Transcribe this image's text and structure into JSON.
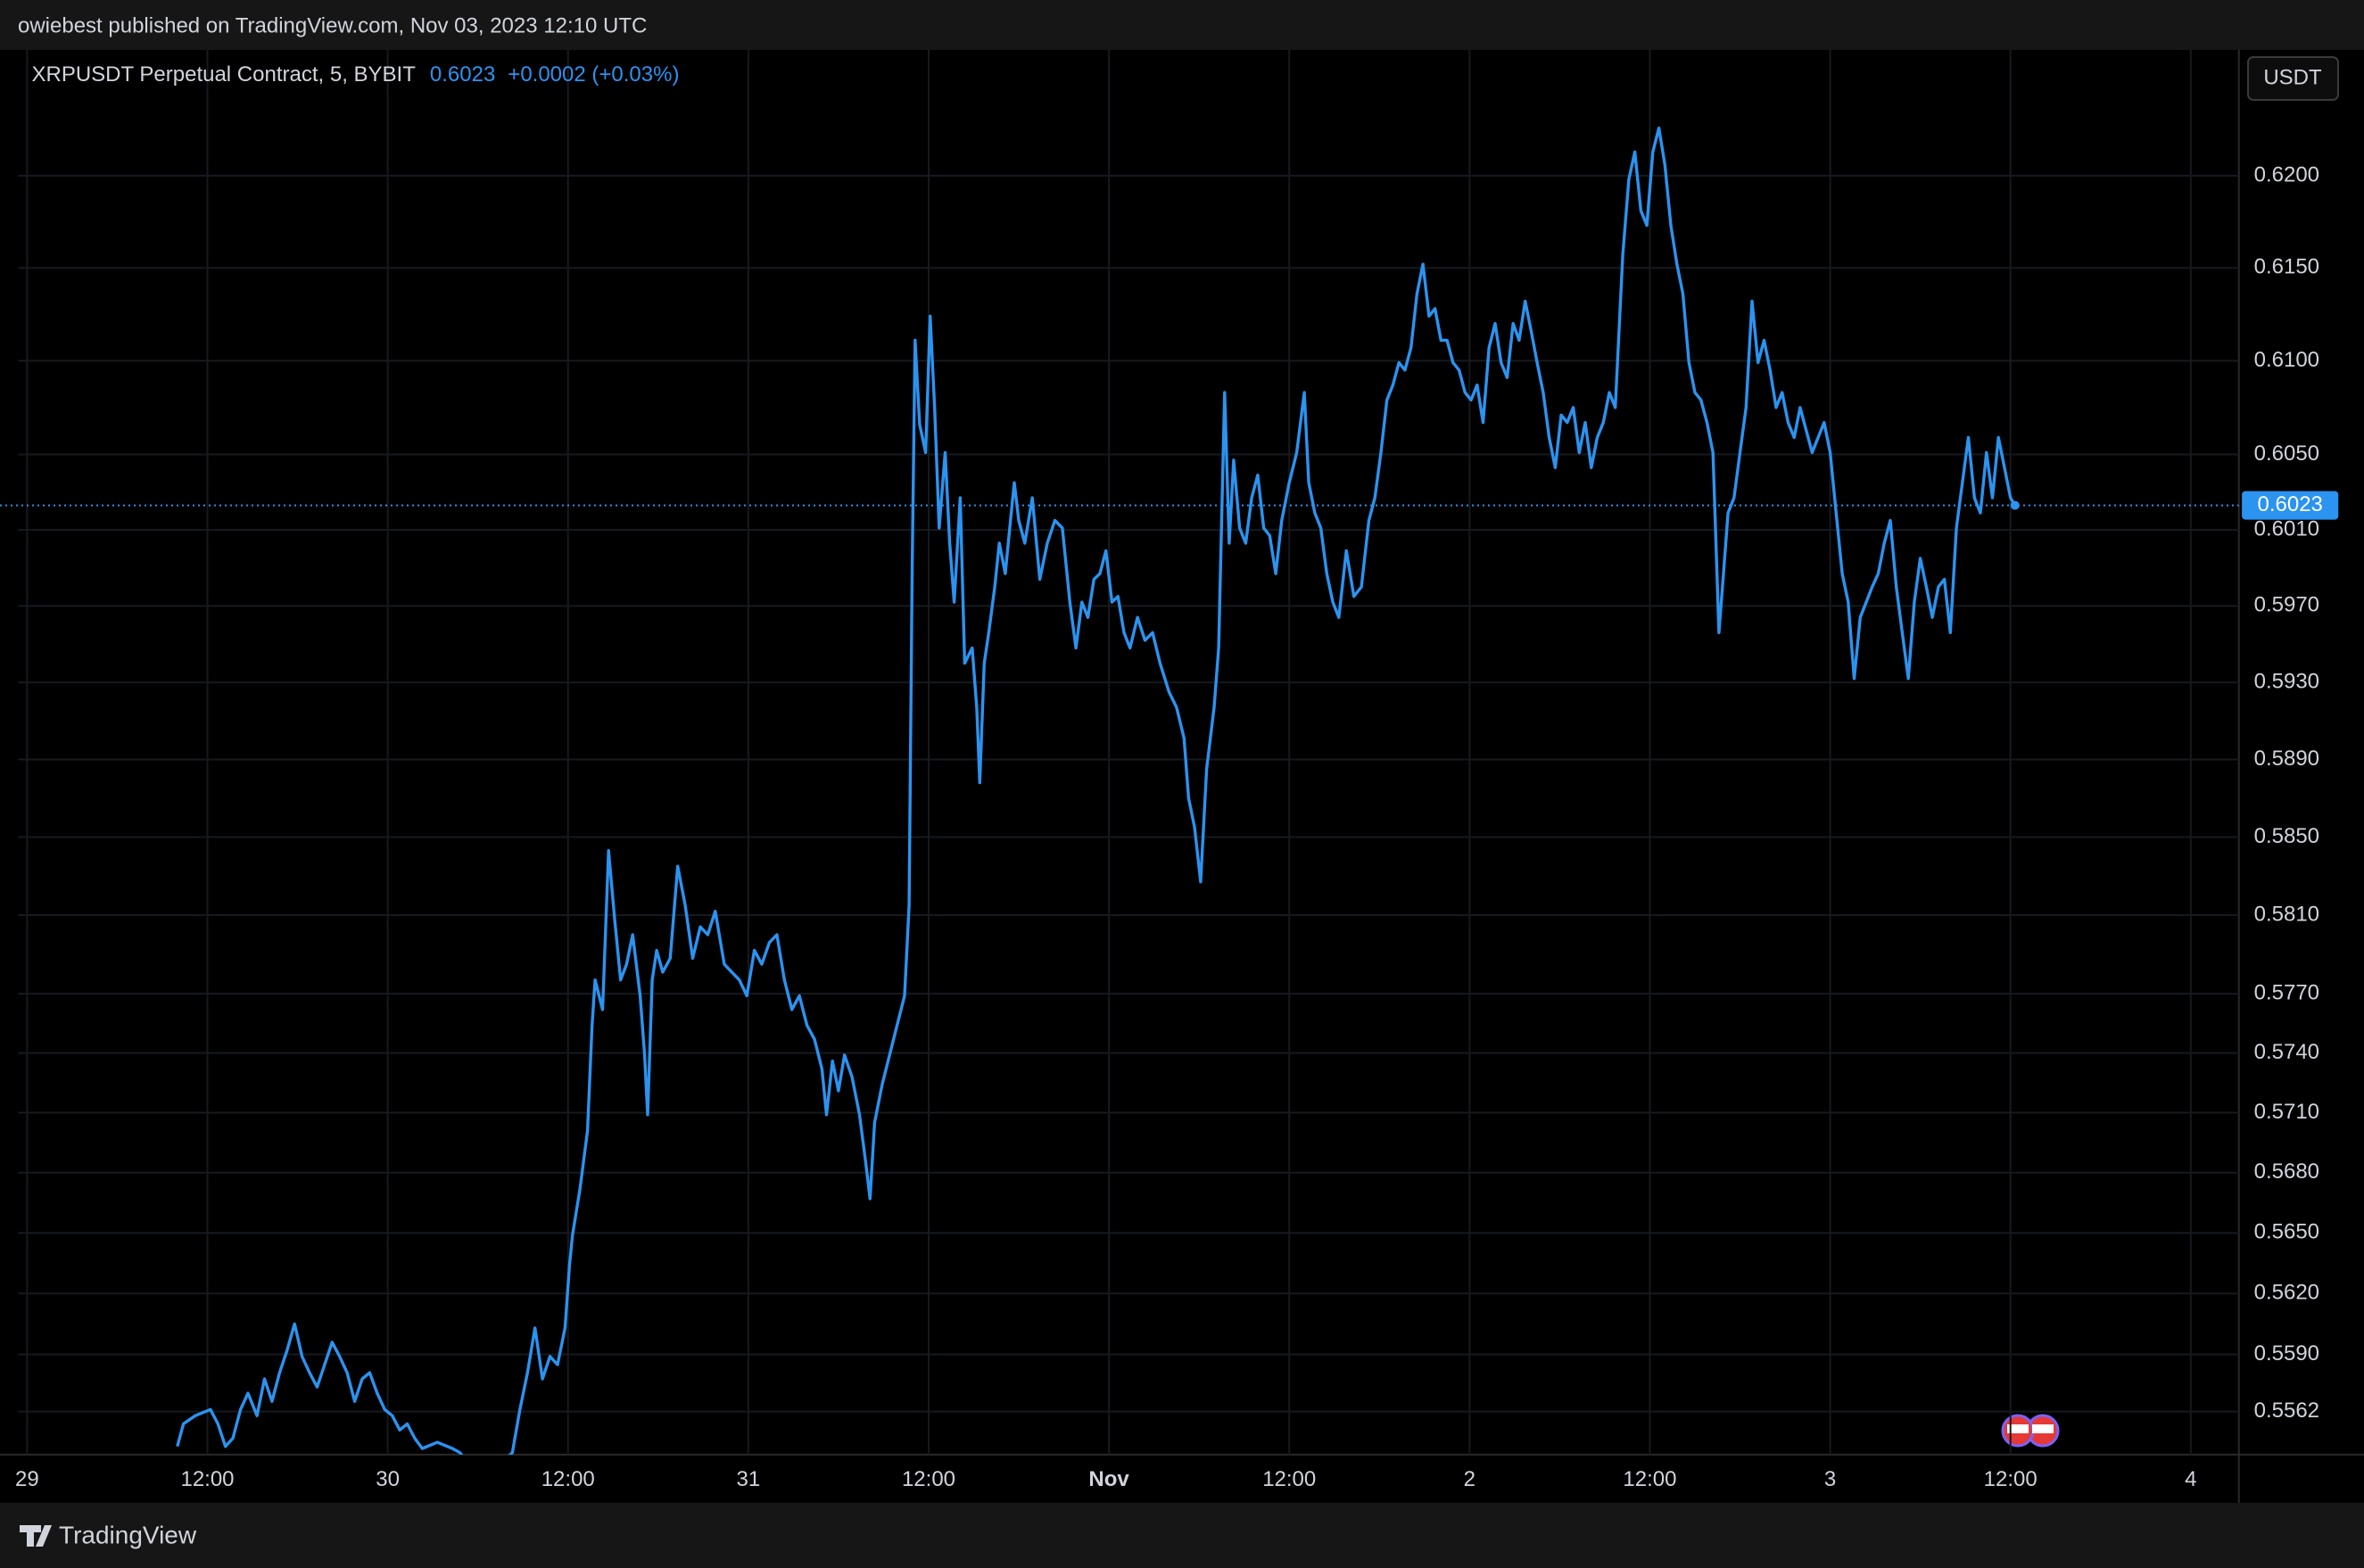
{
  "chart_data": {
    "type": "line",
    "published": "owiebest published on TradingView.com, Nov 03, 2023 12:10 UTC",
    "price": "0.6023",
    "change": "+0.0002 (+0.03%)",
    "currency": "USDT",
    "brand": "TradingView",
    "log_scale": true,
    "grid": true,
    "xlim": [
      -0.6,
      147.2
    ],
    "ylim": [
      0.5541,
      0.6269
    ],
    "xticks": [
      {
        "value": 0,
        "label": "29"
      },
      {
        "value": 12,
        "label": "12:00"
      },
      {
        "value": 24,
        "label": "30"
      },
      {
        "value": 36,
        "label": "12:00"
      },
      {
        "value": 48,
        "label": "31"
      },
      {
        "value": 60,
        "label": "12:00"
      },
      {
        "value": 72,
        "label": "Nov"
      },
      {
        "value": 84,
        "label": "12:00"
      },
      {
        "value": 96,
        "label": "2"
      },
      {
        "value": 108,
        "label": "12:00"
      },
      {
        "value": 120,
        "label": "3"
      },
      {
        "value": 132,
        "label": "12:00"
      },
      {
        "value": 144,
        "label": "4"
      }
    ],
    "yticks": [
      {
        "value": 0.62,
        "label": "0.6200"
      },
      {
        "value": 0.615,
        "label": "0.6150"
      },
      {
        "value": 0.61,
        "label": "0.6100"
      },
      {
        "value": 0.605,
        "label": "0.6050"
      },
      {
        "value": 0.601,
        "label": "0.6010"
      },
      {
        "value": 0.597,
        "label": "0.5970"
      },
      {
        "value": 0.593,
        "label": "0.5930"
      },
      {
        "value": 0.589,
        "label": "0.5890"
      },
      {
        "value": 0.585,
        "label": "0.5850"
      },
      {
        "value": 0.581,
        "label": "0.5810"
      },
      {
        "value": 0.577,
        "label": "0.5770"
      },
      {
        "value": 0.574,
        "label": "0.5740"
      },
      {
        "value": 0.571,
        "label": "0.5710"
      },
      {
        "value": 0.568,
        "label": "0.5680"
      },
      {
        "value": 0.565,
        "label": "0.5650"
      },
      {
        "value": 0.562,
        "label": "0.5620"
      },
      {
        "value": 0.559,
        "label": "0.5590"
      },
      {
        "value": 0.5562,
        "label": "0.5562"
      }
    ],
    "x": [
      10.0,
      10.4,
      11.2,
      12.2,
      12.7,
      13.2,
      13.7,
      14.2,
      14.7,
      15.3,
      15.8,
      16.3,
      16.8,
      17.3,
      17.8,
      18.3,
      18.8,
      19.3,
      19.8,
      20.3,
      20.8,
      21.3,
      21.8,
      22.3,
      22.8,
      23.3,
      23.8,
      24.3,
      24.8,
      25.3,
      25.8,
      26.3,
      27.3,
      28.3,
      28.8,
      30.3,
      32.3,
      32.8,
      33.3,
      33.8,
      34.3,
      34.8,
      35.3,
      35.8,
      36.1,
      36.3,
      36.8,
      37.3,
      37.6,
      37.8,
      38.3,
      38.7,
      39.1,
      39.5,
      39.9,
      40.3,
      40.8,
      41.1,
      41.3,
      41.6,
      41.9,
      42.3,
      42.8,
      43.3,
      43.8,
      44.3,
      44.8,
      45.3,
      45.8,
      46.4,
      46.9,
      47.4,
      47.9,
      48.4,
      48.9,
      49.4,
      49.9,
      50.4,
      50.9,
      51.4,
      51.9,
      52.4,
      52.9,
      53.2,
      53.6,
      54.0,
      54.4,
      54.9,
      55.4,
      55.8,
      56.1,
      56.4,
      56.9,
      57.4,
      57.9,
      58.4,
      58.7,
      58.9,
      59.1,
      59.4,
      59.8,
      60.1,
      60.4,
      60.7,
      61.1,
      61.4,
      61.7,
      62.1,
      62.4,
      62.9,
      63.2,
      63.4,
      63.7,
      64.0,
      64.4,
      64.7,
      65.1,
      65.4,
      65.7,
      66.0,
      66.4,
      66.9,
      67.4,
      67.9,
      68.4,
      68.9,
      69.4,
      69.8,
      70.2,
      70.6,
      71.0,
      71.4,
      71.8,
      72.2,
      72.6,
      73.0,
      73.4,
      73.9,
      74.4,
      74.9,
      75.4,
      76.0,
      76.5,
      77.0,
      77.3,
      77.7,
      78.1,
      78.5,
      79.0,
      79.3,
      79.7,
      80.0,
      80.3,
      80.7,
      81.1,
      81.5,
      81.9,
      82.3,
      82.7,
      83.1,
      83.5,
      84.0,
      84.5,
      85.0,
      85.3,
      85.7,
      86.1,
      86.5,
      86.9,
      87.3,
      87.8,
      88.3,
      88.8,
      89.3,
      89.7,
      90.1,
      90.5,
      90.9,
      91.3,
      91.7,
      92.1,
      92.5,
      92.9,
      93.3,
      93.7,
      94.1,
      94.5,
      94.9,
      95.3,
      95.7,
      96.1,
      96.5,
      96.9,
      97.3,
      97.7,
      98.1,
      98.5,
      98.9,
      99.3,
      99.7,
      100.1,
      100.5,
      100.9,
      101.3,
      101.7,
      102.1,
      102.5,
      102.9,
      103.3,
      103.7,
      104.1,
      104.5,
      104.9,
      105.3,
      105.7,
      106.2,
      106.6,
      107.0,
      107.4,
      107.8,
      108.2,
      108.6,
      109.0,
      109.4,
      109.8,
      110.2,
      110.6,
      111.0,
      111.4,
      111.8,
      112.2,
      112.6,
      112.9,
      113.2,
      113.6,
      114.0,
      114.4,
      114.8,
      115.2,
      115.6,
      116.0,
      116.4,
      116.8,
      117.2,
      117.6,
      118.0,
      118.4,
      118.8,
      119.2,
      119.6,
      120.0,
      120.4,
      120.8,
      121.2,
      121.6,
      122.0,
      122.4,
      122.8,
      123.2,
      123.6,
      124.0,
      124.4,
      124.8,
      125.2,
      125.6,
      126.0,
      126.4,
      126.8,
      127.2,
      127.6,
      128.0,
      128.4,
      128.8,
      129.2,
      129.6,
      130.0,
      130.4,
      130.8,
      131.2,
      131.6,
      132.0,
      132.3
    ],
    "series": [
      {
        "name": "XRPUSDT Perpetual Contract, 5, BYBIT",
        "color": "#2b93f0",
        "values": [
          0.5545,
          0.5556,
          0.556,
          0.5563,
          0.5556,
          0.5545,
          0.5549,
          0.5563,
          0.5571,
          0.556,
          0.5578,
          0.5567,
          0.5581,
          0.5592,
          0.5605,
          0.5589,
          0.5581,
          0.5574,
          0.5585,
          0.5596,
          0.5589,
          0.5581,
          0.5567,
          0.5578,
          0.5581,
          0.5571,
          0.5563,
          0.556,
          0.5553,
          0.5556,
          0.5549,
          0.5544,
          0.5547,
          0.5544,
          0.5542,
          0.5528,
          0.5542,
          0.5563,
          0.5581,
          0.5603,
          0.5578,
          0.5589,
          0.5585,
          0.5603,
          0.5634,
          0.5649,
          0.5672,
          0.5701,
          0.5754,
          0.5777,
          0.5762,
          0.5843,
          0.5808,
          0.5777,
          0.5785,
          0.58,
          0.5769,
          0.5739,
          0.5709,
          0.5777,
          0.5792,
          0.5781,
          0.5788,
          0.5835,
          0.5815,
          0.5788,
          0.5804,
          0.58,
          0.5812,
          0.5785,
          0.5781,
          0.5777,
          0.5769,
          0.5792,
          0.5785,
          0.5796,
          0.58,
          0.5777,
          0.5762,
          0.5769,
          0.5754,
          0.5747,
          0.5732,
          0.5709,
          0.5736,
          0.5721,
          0.5739,
          0.5728,
          0.5709,
          0.5686,
          0.5667,
          0.5705,
          0.5724,
          0.5739,
          0.5754,
          0.5769,
          0.5815,
          0.5988,
          0.6111,
          0.6066,
          0.6051,
          0.6124,
          0.6075,
          0.6011,
          0.6051,
          0.6003,
          0.5972,
          0.6027,
          0.594,
          0.5948,
          0.5917,
          0.5878,
          0.594,
          0.5956,
          0.598,
          0.6003,
          0.5987,
          0.6011,
          0.6035,
          0.6015,
          0.6003,
          0.6027,
          0.5984,
          0.6003,
          0.6015,
          0.6011,
          0.5972,
          0.5948,
          0.5972,
          0.5964,
          0.5984,
          0.5987,
          0.5999,
          0.5972,
          0.5975,
          0.5956,
          0.5948,
          0.5964,
          0.5952,
          0.5956,
          0.594,
          0.5925,
          0.5917,
          0.5901,
          0.587,
          0.5855,
          0.5827,
          0.5885,
          0.5917,
          0.5948,
          0.6083,
          0.6003,
          0.6047,
          0.6011,
          0.6003,
          0.6027,
          0.6039,
          0.6011,
          0.6007,
          0.5987,
          0.6015,
          0.6035,
          0.6051,
          0.6083,
          0.6035,
          0.6019,
          0.6011,
          0.5987,
          0.5972,
          0.5964,
          0.5999,
          0.5975,
          0.598,
          0.6015,
          0.6027,
          0.6051,
          0.6079,
          0.6087,
          0.6099,
          0.6095,
          0.6107,
          0.6136,
          0.6152,
          0.6124,
          0.6128,
          0.6111,
          0.6111,
          0.6099,
          0.6095,
          0.6083,
          0.6079,
          0.6087,
          0.6067,
          0.6107,
          0.612,
          0.6099,
          0.6091,
          0.612,
          0.6111,
          0.6132,
          0.6116,
          0.6099,
          0.6083,
          0.6059,
          0.6043,
          0.6071,
          0.6067,
          0.6075,
          0.6051,
          0.6067,
          0.6043,
          0.6059,
          0.6067,
          0.6083,
          0.6075,
          0.6157,
          0.6198,
          0.6213,
          0.6181,
          0.6173,
          0.6213,
          0.6226,
          0.6206,
          0.6173,
          0.6152,
          0.6136,
          0.6099,
          0.6083,
          0.6079,
          0.6067,
          0.6051,
          0.5956,
          0.5987,
          0.6019,
          0.6027,
          0.6051,
          0.6075,
          0.6132,
          0.6099,
          0.6111,
          0.6095,
          0.6075,
          0.6083,
          0.6067,
          0.6059,
          0.6075,
          0.6063,
          0.6051,
          0.6059,
          0.6067,
          0.6051,
          0.6019,
          0.5987,
          0.5972,
          0.5932,
          0.5964,
          0.5972,
          0.598,
          0.5987,
          0.6003,
          0.6015,
          0.598,
          0.5956,
          0.5932,
          0.5972,
          0.5995,
          0.598,
          0.5964,
          0.598,
          0.5984,
          0.5956,
          0.6011,
          0.6035,
          0.6059,
          0.6027,
          0.6019,
          0.6051,
          0.6027,
          0.6059,
          0.6043,
          0.6027,
          0.6023
        ]
      }
    ]
  }
}
